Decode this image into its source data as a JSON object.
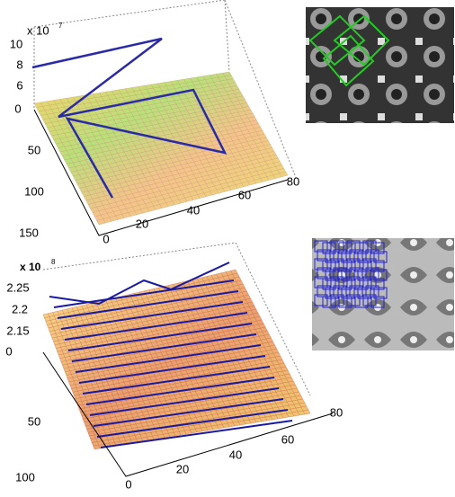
{
  "top_plot": {
    "z_scale": {
      "base": "x 10",
      "exponent": "7"
    },
    "z_ticks": [
      "10",
      "8",
      "6",
      "0"
    ],
    "y_ticks": [
      "50",
      "100",
      "150"
    ],
    "x_ticks": [
      "0",
      "20",
      "40",
      "60",
      "80"
    ]
  },
  "bottom_plot": {
    "z_scale": {
      "base": "x 10",
      "exponent": "8"
    },
    "z_ticks": [
      "2.25",
      "2.2",
      "2.15",
      "0"
    ],
    "y_ticks": [
      "50",
      "100"
    ],
    "x_ticks": [
      "0",
      "20",
      "40",
      "60",
      "80"
    ]
  }
}
